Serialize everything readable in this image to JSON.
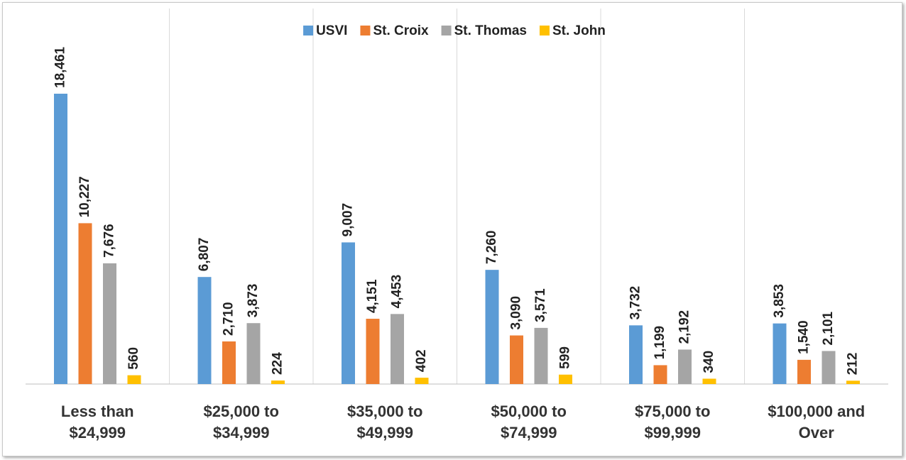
{
  "chart_data": {
    "type": "bar",
    "categories": [
      "Less than\n$24,999",
      "$25,000 to\n$34,999",
      "$35,000 to\n$49,999",
      "$50,000 to\n$74,999",
      "$75,000 to\n$99,999",
      "$100,000 and\nOver"
    ],
    "series": [
      {
        "name": "USVI",
        "color": "#5b9bd5",
        "values": [
          18461,
          6807,
          9007,
          7260,
          3732,
          3853
        ],
        "value_labels": [
          "18,461",
          "6,807",
          "9,007",
          "7,260",
          "3,732",
          "3,853"
        ]
      },
      {
        "name": "St. Croix",
        "color": "#ed7d31",
        "values": [
          10227,
          2710,
          4151,
          3090,
          1199,
          1540
        ],
        "value_labels": [
          "10,227",
          "2,710",
          "4,151",
          "3,090",
          "1,199",
          "1,540"
        ]
      },
      {
        "name": "St. Thomas",
        "color": "#a5a5a5",
        "values": [
          7676,
          3873,
          4453,
          3571,
          2192,
          2101
        ],
        "value_labels": [
          "7,676",
          "3,873",
          "4,453",
          "3,571",
          "2,192",
          "2,101"
        ]
      },
      {
        "name": "St. John",
        "color": "#ffc000",
        "values": [
          560,
          224,
          402,
          599,
          340,
          212
        ],
        "value_labels": [
          "560",
          "224",
          "402",
          "599",
          "340",
          "212"
        ]
      }
    ],
    "legend": "top"
  }
}
